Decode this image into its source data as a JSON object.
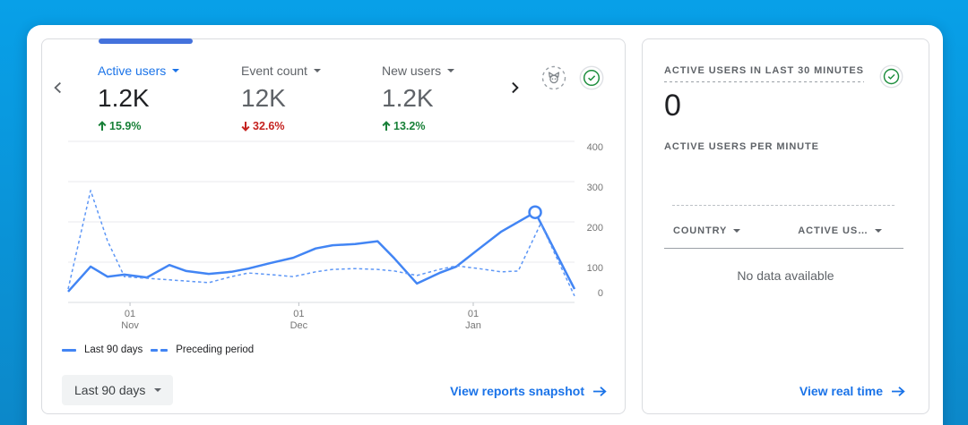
{
  "colors": {
    "background_top": "#08a0e8",
    "background_bottom": "#0c88c9",
    "accent_blue": "#1a73e8",
    "chart_blue": "#4285f4",
    "green": "#188038",
    "red": "#c5221f"
  },
  "metrics_card": {
    "tabs": [
      {
        "label": "Active users",
        "value": "1.2K",
        "delta": "15.9%",
        "direction": "up",
        "active": true
      },
      {
        "label": "Event count",
        "value": "12K",
        "delta": "32.6%",
        "direction": "down",
        "active": false
      },
      {
        "label": "New users",
        "value": "1.2K",
        "delta": "13.2%",
        "direction": "up",
        "active": false
      }
    ],
    "legend": [
      {
        "label": "Last 90 days",
        "style": "solid"
      },
      {
        "label": "Preceding period",
        "style": "dashed"
      }
    ],
    "date_range_button": "Last 90 days",
    "link": "View reports snapshot"
  },
  "chart_data": {
    "type": "line",
    "x_axis": {
      "range_days": [
        0,
        90
      ],
      "ticks": [
        {
          "day": 11,
          "lines": [
            "01",
            "Nov"
          ]
        },
        {
          "day": 41,
          "lines": [
            "01",
            "Dec"
          ]
        },
        {
          "day": 72,
          "lines": [
            "01",
            "Jan"
          ]
        }
      ]
    },
    "ylim": [
      0,
      400
    ],
    "yticks": [
      0,
      100,
      200,
      300,
      400
    ],
    "legend_position": "bottom",
    "series": [
      {
        "name": "Last 90 days",
        "style": "solid",
        "points": [
          [
            0,
            27
          ],
          [
            4,
            89
          ],
          [
            7,
            64
          ],
          [
            10,
            69
          ],
          [
            14,
            62
          ],
          [
            18,
            93
          ],
          [
            21,
            78
          ],
          [
            25,
            71
          ],
          [
            29,
            76
          ],
          [
            32,
            84
          ],
          [
            36,
            98
          ],
          [
            40,
            111
          ],
          [
            44,
            134
          ],
          [
            47,
            142
          ],
          [
            51,
            145
          ],
          [
            55,
            152
          ],
          [
            58,
            109
          ],
          [
            62,
            47
          ],
          [
            66,
            73
          ],
          [
            69,
            89
          ],
          [
            73,
            133
          ],
          [
            77,
            176
          ],
          [
            83,
            224
          ],
          [
            90,
            33
          ]
        ]
      },
      {
        "name": "Preceding period",
        "style": "dashed",
        "points": [
          [
            0,
            33
          ],
          [
            4,
            278
          ],
          [
            7,
            153
          ],
          [
            10,
            64
          ],
          [
            14,
            60
          ],
          [
            18,
            56
          ],
          [
            21,
            53
          ],
          [
            25,
            49
          ],
          [
            29,
            64
          ],
          [
            32,
            73
          ],
          [
            36,
            69
          ],
          [
            40,
            64
          ],
          [
            44,
            76
          ],
          [
            47,
            82
          ],
          [
            51,
            84
          ],
          [
            55,
            82
          ],
          [
            58,
            78
          ],
          [
            62,
            67
          ],
          [
            66,
            82
          ],
          [
            69,
            91
          ],
          [
            73,
            84
          ],
          [
            77,
            76
          ],
          [
            80,
            78
          ],
          [
            84,
            196
          ],
          [
            90,
            16
          ]
        ]
      }
    ],
    "marker": {
      "series": 0,
      "day": 83,
      "value": 224
    }
  },
  "realtime_card": {
    "title": "ACTIVE USERS IN LAST 30 MINUTES",
    "value": "0",
    "subtitle": "ACTIVE USERS PER MINUTE",
    "table": {
      "columns": [
        "COUNTRY",
        "ACTIVE US…"
      ],
      "empty_message": "No data available"
    },
    "link": "View real time"
  }
}
